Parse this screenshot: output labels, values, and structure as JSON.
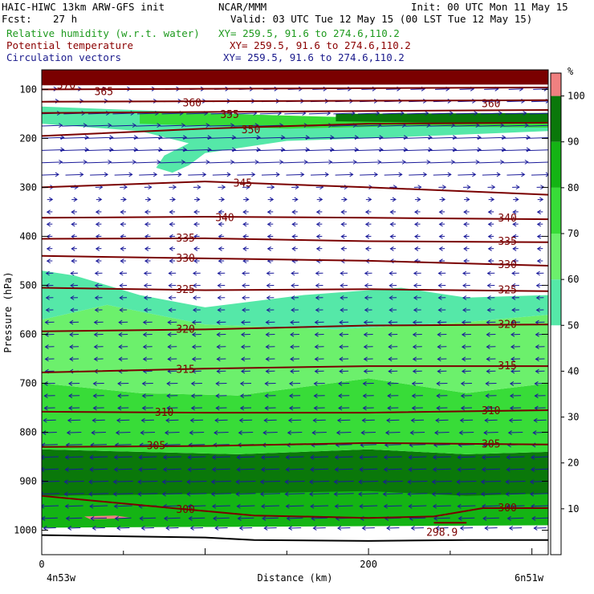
{
  "header": {
    "model": "HAIC-HIWC 13km ARW-GFS init",
    "center": "NCAR/MMM",
    "init": "Init: 00 UTC Mon 11 May 15",
    "fcst_label": "Fcst:",
    "fcst_value": "27 h",
    "valid": "Valid: 03 UTC Tue 12 May 15 (00 LST Tue 12 May 15)",
    "fields": [
      {
        "name": "Relative humidity (w.r.t. water)",
        "xy": "XY= 259.5, 91.6 to 274.6,110.2",
        "color": "#1e9a1e"
      },
      {
        "name": "Potential temperature",
        "xy": "XY= 259.5, 91.6 to 274.6,110.2",
        "color": "#8b0000"
      },
      {
        "name": "Circulation vectors",
        "xy": "XY= 259.5, 91.6 to 274.6,110.2",
        "color": "#1a1a8c"
      }
    ]
  },
  "chart_data": {
    "type": "heatmap",
    "xlabel": "Distance (km)",
    "ylabel": "Pressure (hPa)",
    "x_ticks": [
      "0",
      "200"
    ],
    "x_tick_values": [
      0,
      200
    ],
    "x_range": [
      0,
      310
    ],
    "x_left_label": "4n53w",
    "x_right_label": "6n51w",
    "y_ticks": [
      "100",
      "200",
      "300",
      "400",
      "500",
      "600",
      "700",
      "800",
      "900",
      "1000"
    ],
    "y_tick_values": [
      100,
      200,
      300,
      400,
      500,
      600,
      700,
      800,
      900,
      1000
    ],
    "y_range": [
      60,
      1050
    ],
    "colorbar": {
      "unit": "%",
      "levels": [
        "10",
        "20",
        "30",
        "40",
        "50",
        "60",
        "70",
        "80",
        "90",
        "100"
      ],
      "level_values": [
        10,
        20,
        30,
        40,
        50,
        60,
        70,
        80,
        90,
        100
      ],
      "fills": [
        {
          "from": 0,
          "to": 50,
          "color": "#ffffff"
        },
        {
          "from": 50,
          "to": 60,
          "color": "#55e8a8"
        },
        {
          "from": 60,
          "to": 70,
          "color": "#6cf06c"
        },
        {
          "from": 70,
          "to": 80,
          "color": "#38dc38"
        },
        {
          "from": 80,
          "to": 90,
          "color": "#14b414"
        },
        {
          "from": 90,
          "to": 100,
          "color": "#0a780a"
        },
        {
          "from": 100,
          "to": 105,
          "color": "#f08080"
        }
      ]
    },
    "rh_regions": [
      {
        "band": "90-100",
        "color": "#0a780a",
        "points": [
          [
            0,
            1000
          ],
          [
            0,
            835
          ],
          [
            60,
            840
          ],
          [
            120,
            845
          ],
          [
            200,
            835
          ],
          [
            260,
            845
          ],
          [
            310,
            840
          ],
          [
            310,
            985
          ],
          [
            0,
            985
          ]
        ]
      },
      {
        "band": "80-90",
        "color": "#14b414",
        "points": [
          [
            0,
            985
          ],
          [
            0,
            930
          ],
          [
            120,
            925
          ],
          [
            200,
            920
          ],
          [
            260,
            930
          ],
          [
            310,
            925
          ],
          [
            310,
            990
          ],
          [
            0,
            995
          ]
        ]
      },
      {
        "band": "70-80",
        "color": "#38dc38",
        "points": [
          [
            0,
            835
          ],
          [
            0,
            700
          ],
          [
            60,
            720
          ],
          [
            120,
            725
          ],
          [
            200,
            690
          ],
          [
            260,
            720
          ],
          [
            310,
            700
          ],
          [
            310,
            840
          ],
          [
            260,
            845
          ],
          [
            200,
            835
          ],
          [
            120,
            845
          ],
          [
            60,
            840
          ]
        ]
      },
      {
        "band": "60-70",
        "color": "#6cf06c",
        "points": [
          [
            0,
            700
          ],
          [
            0,
            570
          ],
          [
            40,
            540
          ],
          [
            100,
            580
          ],
          [
            180,
            590
          ],
          [
            260,
            575
          ],
          [
            310,
            560
          ],
          [
            310,
            700
          ],
          [
            260,
            720
          ],
          [
            200,
            690
          ],
          [
            120,
            725
          ],
          [
            60,
            720
          ]
        ]
      },
      {
        "band": "50-60",
        "color": "#55e8a8",
        "points": [
          [
            0,
            570
          ],
          [
            0,
            470
          ],
          [
            20,
            480
          ],
          [
            60,
            520
          ],
          [
            100,
            545
          ],
          [
            160,
            520
          ],
          [
            220,
            505
          ],
          [
            260,
            525
          ],
          [
            310,
            520
          ],
          [
            310,
            560
          ],
          [
            260,
            575
          ],
          [
            180,
            590
          ],
          [
            100,
            580
          ],
          [
            40,
            540
          ]
        ]
      },
      {
        "band": "50-60",
        "color": "#55e8a8",
        "points": [
          [
            0,
            135
          ],
          [
            120,
            150
          ],
          [
            200,
            160
          ],
          [
            310,
            150
          ],
          [
            310,
            185
          ],
          [
            200,
            200
          ],
          [
            150,
            205
          ],
          [
            100,
            230
          ],
          [
            90,
            255
          ],
          [
            80,
            270
          ],
          [
            70,
            260
          ],
          [
            75,
            235
          ],
          [
            90,
            210
          ],
          [
            60,
            185
          ],
          [
            0,
            170
          ]
        ]
      },
      {
        "band": "70-80",
        "color": "#38dc38",
        "points": [
          [
            60,
            145
          ],
          [
            200,
            158
          ],
          [
            310,
            150
          ],
          [
            310,
            178
          ],
          [
            220,
            175
          ],
          [
            150,
            180
          ],
          [
            60,
            170
          ]
        ]
      },
      {
        "band": "90-100",
        "color": "#0a780a",
        "points": [
          [
            180,
            150
          ],
          [
            310,
            148
          ],
          [
            310,
            168
          ],
          [
            240,
            168
          ],
          [
            180,
            165
          ]
        ]
      },
      {
        "band": ">100",
        "color": "#7a0000",
        "points": [
          [
            0,
            60
          ],
          [
            310,
            60
          ],
          [
            310,
            90
          ],
          [
            0,
            90
          ]
        ]
      }
    ],
    "theta_contours": [
      {
        "value": 370,
        "label": "370",
        "points": [
          [
            0,
            90
          ],
          [
            310,
            88
          ]
        ]
      },
      {
        "value": 365,
        "label": "365",
        "points": [
          [
            0,
            100
          ],
          [
            310,
            96
          ]
        ]
      },
      {
        "value": 360,
        "label": "360",
        "points": [
          [
            0,
            125
          ],
          [
            310,
            122
          ]
        ]
      },
      {
        "value": 355,
        "label": "355",
        "points": [
          [
            0,
            148
          ],
          [
            310,
            142
          ]
        ]
      },
      {
        "value": 350,
        "label": "350",
        "points": [
          [
            0,
            195
          ],
          [
            100,
            180
          ],
          [
            200,
            170
          ],
          [
            310,
            168
          ]
        ]
      },
      {
        "value": 345,
        "label": "345",
        "points": [
          [
            0,
            300
          ],
          [
            100,
            288
          ],
          [
            200,
            300
          ],
          [
            310,
            315
          ]
        ]
      },
      {
        "value": 340,
        "label": "340",
        "points": [
          [
            0,
            362
          ],
          [
            100,
            360
          ],
          [
            200,
            362
          ],
          [
            310,
            365
          ]
        ]
      },
      {
        "value": 335,
        "label": "335",
        "points": [
          [
            0,
            405
          ],
          [
            100,
            404
          ],
          [
            200,
            410
          ],
          [
            310,
            412
          ]
        ]
      },
      {
        "value": 330,
        "label": "330",
        "points": [
          [
            0,
            440
          ],
          [
            100,
            445
          ],
          [
            200,
            450
          ],
          [
            310,
            460
          ]
        ]
      },
      {
        "value": 325,
        "label": "325",
        "points": [
          [
            0,
            505
          ],
          [
            100,
            510
          ],
          [
            200,
            508
          ],
          [
            310,
            512
          ]
        ]
      },
      {
        "value": 320,
        "label": "320",
        "points": [
          [
            0,
            594
          ],
          [
            100,
            590
          ],
          [
            200,
            582
          ],
          [
            310,
            580
          ]
        ]
      },
      {
        "value": 315,
        "label": "315",
        "points": [
          [
            0,
            678
          ],
          [
            100,
            670
          ],
          [
            200,
            665
          ],
          [
            310,
            665
          ]
        ]
      },
      {
        "value": 310,
        "label": "310",
        "points": [
          [
            0,
            758
          ],
          [
            100,
            760
          ],
          [
            200,
            760
          ],
          [
            310,
            755
          ]
        ]
      },
      {
        "value": 305,
        "label": "305",
        "points": [
          [
            0,
            830
          ],
          [
            100,
            828
          ],
          [
            200,
            822
          ],
          [
            310,
            825
          ]
        ]
      },
      {
        "value": 300,
        "label": "300",
        "points": [
          [
            0,
            930
          ],
          [
            80,
            955
          ],
          [
            130,
            970
          ],
          [
            200,
            975
          ],
          [
            240,
            972
          ],
          [
            270,
            955
          ],
          [
            310,
            955
          ]
        ]
      },
      {
        "value": 298.9,
        "label": "298.9",
        "points": [
          [
            240,
            985
          ],
          [
            260,
            985
          ]
        ]
      }
    ],
    "theta_label_positions": [
      {
        "label": "370",
        "x": 15,
        "p": 92
      },
      {
        "label": "365",
        "x": 38,
        "p": 105
      },
      {
        "label": "360",
        "x": 92,
        "p": 128
      },
      {
        "label": "355",
        "x": 115,
        "p": 152
      },
      {
        "label": "360",
        "x": 275,
        "p": 130
      },
      {
        "label": "350",
        "x": 128,
        "p": 183
      },
      {
        "label": "345",
        "x": 123,
        "p": 292
      },
      {
        "label": "340",
        "x": 112,
        "p": 362
      },
      {
        "label": "340",
        "x": 285,
        "p": 363
      },
      {
        "label": "335",
        "x": 88,
        "p": 404
      },
      {
        "label": "335",
        "x": 285,
        "p": 411
      },
      {
        "label": "330",
        "x": 88,
        "p": 445
      },
      {
        "label": "330",
        "x": 285,
        "p": 458
      },
      {
        "label": "325",
        "x": 88,
        "p": 509
      },
      {
        "label": "325",
        "x": 285,
        "p": 510
      },
      {
        "label": "320",
        "x": 88,
        "p": 590
      },
      {
        "label": "320",
        "x": 285,
        "p": 580
      },
      {
        "label": "315",
        "x": 88,
        "p": 672
      },
      {
        "label": "315",
        "x": 285,
        "p": 665
      },
      {
        "label": "310",
        "x": 75,
        "p": 760
      },
      {
        "label": "310",
        "x": 275,
        "p": 757
      },
      {
        "label": "305",
        "x": 70,
        "p": 828
      },
      {
        "label": "305",
        "x": 275,
        "p": 825
      },
      {
        "label": "300",
        "x": 88,
        "p": 958
      },
      {
        "label": "300",
        "x": 285,
        "p": 955
      },
      {
        "label": "298.9",
        "x": 245,
        "p": 1005
      }
    ],
    "wind_vectors": {
      "direction": "mostly westward (arrows pointing left) below 200 hPa; eastward jet 100-250 hPa",
      "rows": [
        {
          "p": 100,
          "u": 8
        },
        {
          "p": 125,
          "u": 10
        },
        {
          "p": 150,
          "u": 12
        },
        {
          "p": 175,
          "u": 14
        },
        {
          "p": 200,
          "u": 16
        },
        {
          "p": 225,
          "u": 16
        },
        {
          "p": 250,
          "u": 14
        },
        {
          "p": 275,
          "u": 10
        },
        {
          "p": 300,
          "u": 4
        },
        {
          "p": 325,
          "u": 3
        },
        {
          "p": 350,
          "u": -3
        },
        {
          "p": 375,
          "u": -3
        },
        {
          "p": 400,
          "u": -3
        },
        {
          "p": 425,
          "u": -3
        },
        {
          "p": 450,
          "u": -3
        },
        {
          "p": 475,
          "u": -4
        },
        {
          "p": 500,
          "u": -4
        },
        {
          "p": 525,
          "u": -4
        },
        {
          "p": 550,
          "u": -4
        },
        {
          "p": 575,
          "u": -5
        },
        {
          "p": 600,
          "u": -5
        },
        {
          "p": 625,
          "u": -5
        },
        {
          "p": 650,
          "u": -5
        },
        {
          "p": 675,
          "u": -5
        },
        {
          "p": 700,
          "u": -6
        },
        {
          "p": 725,
          "u": -6
        },
        {
          "p": 750,
          "u": -6
        },
        {
          "p": 775,
          "u": -7
        },
        {
          "p": 800,
          "u": -8
        },
        {
          "p": 825,
          "u": -9
        },
        {
          "p": 850,
          "u": -10
        },
        {
          "p": 875,
          "u": -10
        },
        {
          "p": 900,
          "u": -11
        },
        {
          "p": 925,
          "u": -11
        },
        {
          "p": 950,
          "u": -10
        },
        {
          "p": 975,
          "u": -9
        },
        {
          "p": 995,
          "u": -7
        }
      ],
      "columns": 21
    },
    "grid": false,
    "legend": "right"
  }
}
